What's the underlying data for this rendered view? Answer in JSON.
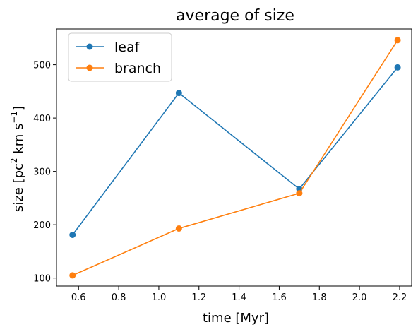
{
  "chart_data": {
    "type": "line",
    "title": "average of size",
    "xlabel": "time [Myr]",
    "ylabel": {
      "prefix": "size [pc",
      "sup1": "2",
      "mid": " km s",
      "sup2": "−1",
      "suffix": "]"
    },
    "xlim": [
      0.49,
      2.26
    ],
    "ylim": [
      85,
      567
    ],
    "xticks": [
      0.6,
      0.8,
      1.0,
      1.2,
      1.4,
      1.6,
      1.8,
      2.0,
      2.2
    ],
    "xtick_labels": [
      "0.6",
      "0.8",
      "1.0",
      "1.2",
      "1.4",
      "1.6",
      "1.8",
      "2.0",
      "2.2"
    ],
    "yticks": [
      100,
      200,
      300,
      400,
      500
    ],
    "ytick_labels": [
      "100",
      "200",
      "300",
      "400",
      "500"
    ],
    "grid": false,
    "legend": "top-left",
    "series": [
      {
        "name": "leaf",
        "color": "#1f77b4",
        "x": [
          0.57,
          1.1,
          1.7,
          2.19
        ],
        "y": [
          181,
          447,
          267,
          495
        ]
      },
      {
        "name": "branch",
        "color": "#ff7f0e",
        "x": [
          0.57,
          1.1,
          1.7,
          2.19
        ],
        "y": [
          105,
          193,
          259,
          546
        ]
      }
    ]
  }
}
